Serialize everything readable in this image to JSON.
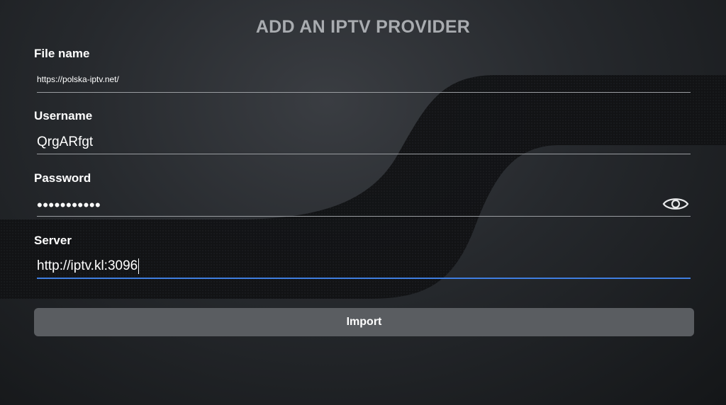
{
  "title": "ADD AN IPTV PROVIDER",
  "fields": [
    {
      "label": "File name",
      "value": "https://polska-iptv.net/"
    },
    {
      "label": "Username",
      "value": "QrgARfgt"
    },
    {
      "label": "Password",
      "value": "•••••••••••",
      "toggle_icon": "eye-icon"
    },
    {
      "label": "Server",
      "value": "http://iptv.kl:3096",
      "focused": true
    }
  ],
  "import_label": "Import",
  "colors": {
    "accent": "#3f7ee0",
    "button": "#5a5d61",
    "title": "#a9acb0"
  }
}
